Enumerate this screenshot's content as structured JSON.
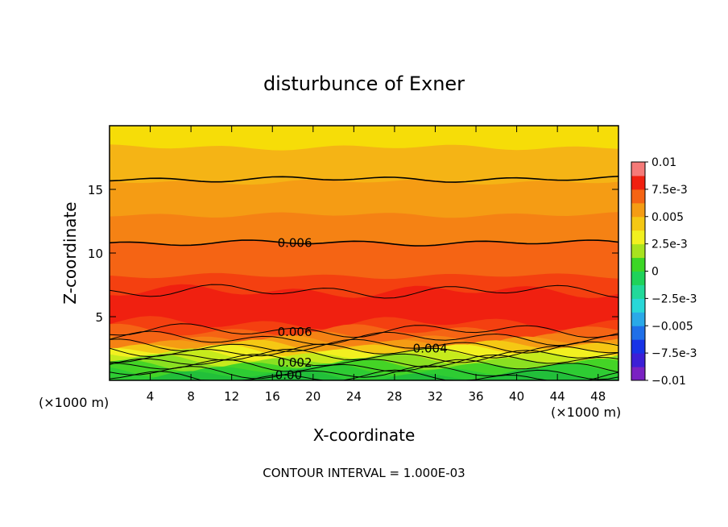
{
  "chart_data": {
    "type": "contour",
    "title": "disturbunce of Exner",
    "xlabel": "X-coordinate",
    "ylabel": "Z-coordinate",
    "x_unit_left": "(×1000 m)",
    "x_unit_right": "(×1000 m)",
    "footer": "CONTOUR INTERVAL = 1.000E-03",
    "xlim": [
      0,
      50
    ],
    "ylim": [
      0,
      20
    ],
    "x_ticks": [
      4,
      8,
      12,
      16,
      20,
      24,
      28,
      32,
      36,
      40,
      44,
      48
    ],
    "y_ticks": [
      5,
      10,
      15
    ],
    "x_tick_labels": [
      "4",
      "8",
      "12",
      "16",
      "20",
      "24",
      "28",
      "32",
      "36",
      "40",
      "44",
      "48"
    ],
    "y_tick_labels": [
      "5",
      "10",
      "15"
    ],
    "contour_labels": [
      {
        "text": "0.006",
        "x": 18.2,
        "z": 10.8
      },
      {
        "text": "0.006",
        "x": 18.2,
        "z": 3.8
      },
      {
        "text": "0.004",
        "x": 31.5,
        "z": 2.5
      },
      {
        "text": "0.002",
        "x": 18.2,
        "z": 1.4
      },
      {
        "text": "0.00",
        "x": 17.6,
        "z": 0.4
      }
    ],
    "colorbar": {
      "vmin": -0.01,
      "vmax": 0.01,
      "levels": 16,
      "tick_labels": [
        "0.01",
        "7.5e-3",
        "0.005",
        "2.5e-3",
        "0",
        "−2.5e-3",
        "−0.005",
        "−7.5e-3",
        "−0.01"
      ],
      "colors": [
        "#7a22c2",
        "#3c1fd6",
        "#1833e6",
        "#1f6fe8",
        "#2aa9e8",
        "#28d7d7",
        "#22d99a",
        "#1fd25a",
        "#3cd626",
        "#a8e21f",
        "#f2f020",
        "#f5c814",
        "#f59c14",
        "#f56414",
        "#f02010",
        "#f57a78"
      ]
    },
    "bands": [
      {
        "color": "#f6dd08",
        "top": 20.0
      },
      {
        "color": "#f5b415",
        "top": 18.3
      },
      {
        "color": "#f59c14",
        "top": 15.6
      },
      {
        "color": "#f58214",
        "top": 13.0
      },
      {
        "color": "#f56414",
        "top": 10.8
      },
      {
        "color": "#f44010",
        "top": 8.2
      },
      {
        "color": "#f02010",
        "top": 7.0
      },
      {
        "color": "#f44010",
        "top": 4.5
      },
      {
        "color": "#f56414",
        "top": 3.9
      },
      {
        "color": "#f58214",
        "top": 3.3
      },
      {
        "color": "#f59c14",
        "top": 3.0
      },
      {
        "color": "#f5c814",
        "top": 2.65
      },
      {
        "color": "#f2f020",
        "top": 2.3
      },
      {
        "color": "#c6ea1c",
        "top": 2.0
      },
      {
        "color": "#8ae021",
        "top": 1.6
      },
      {
        "color": "#44d426",
        "top": 1.2
      },
      {
        "color": "#2ecc33",
        "top": 0.8
      },
      {
        "color": "#22bf3a",
        "top": 0.4
      }
    ],
    "contour_lines": [
      15.8,
      10.8,
      7.0,
      3.9,
      3.3,
      2.7,
      2.3,
      1.9,
      1.5,
      1.1,
      0.6,
      0.25
    ]
  }
}
